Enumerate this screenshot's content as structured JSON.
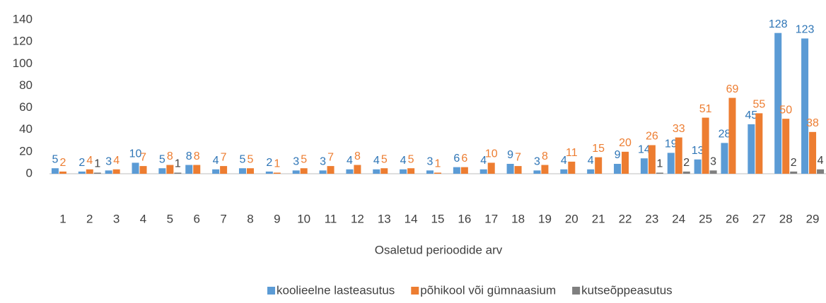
{
  "chart_data": {
    "type": "bar",
    "x_label": "Osaletud perioodide arv",
    "categories": [
      "1",
      "2",
      "3",
      "4",
      "5",
      "6",
      "7",
      "8",
      "9",
      "10",
      "11",
      "12",
      "13",
      "14",
      "15",
      "16",
      "17",
      "18",
      "19",
      "20",
      "21",
      "22",
      "23",
      "24",
      "25",
      "26",
      "27",
      "28",
      "29"
    ],
    "series": [
      {
        "name": "koolieelne lasteasutus",
        "color": "#5b9bd5",
        "label_color": "#2e75b6",
        "values": [
          5,
          2,
          3,
          10,
          5,
          8,
          4,
          5,
          2,
          3,
          3,
          4,
          4,
          4,
          3,
          6,
          4,
          9,
          3,
          4,
          4,
          9,
          14,
          19,
          13,
          28,
          45,
          128,
          123
        ]
      },
      {
        "name": "põhikool või gümnaasium",
        "color": "#ed7d31",
        "label_color": "#ed7d31",
        "values": [
          2,
          4,
          4,
          7,
          8,
          8,
          7,
          5,
          1,
          5,
          7,
          8,
          5,
          5,
          1,
          6,
          10,
          7,
          8,
          11,
          15,
          20,
          26,
          33,
          51,
          69,
          55,
          50,
          38
        ]
      },
      {
        "name": "kutseõppeasutus",
        "color": "#7f7f7f",
        "label_color": "#404040",
        "values": [
          null,
          1,
          null,
          null,
          1,
          null,
          null,
          null,
          null,
          null,
          null,
          null,
          null,
          null,
          null,
          null,
          null,
          null,
          null,
          null,
          null,
          null,
          1,
          2,
          3,
          null,
          null,
          2,
          4
        ]
      }
    ],
    "ylim": [
      0,
      140
    ],
    "yticks": [
      0,
      20,
      40,
      60,
      80,
      100,
      120,
      140
    ],
    "grid": false,
    "legend": "bottom"
  }
}
